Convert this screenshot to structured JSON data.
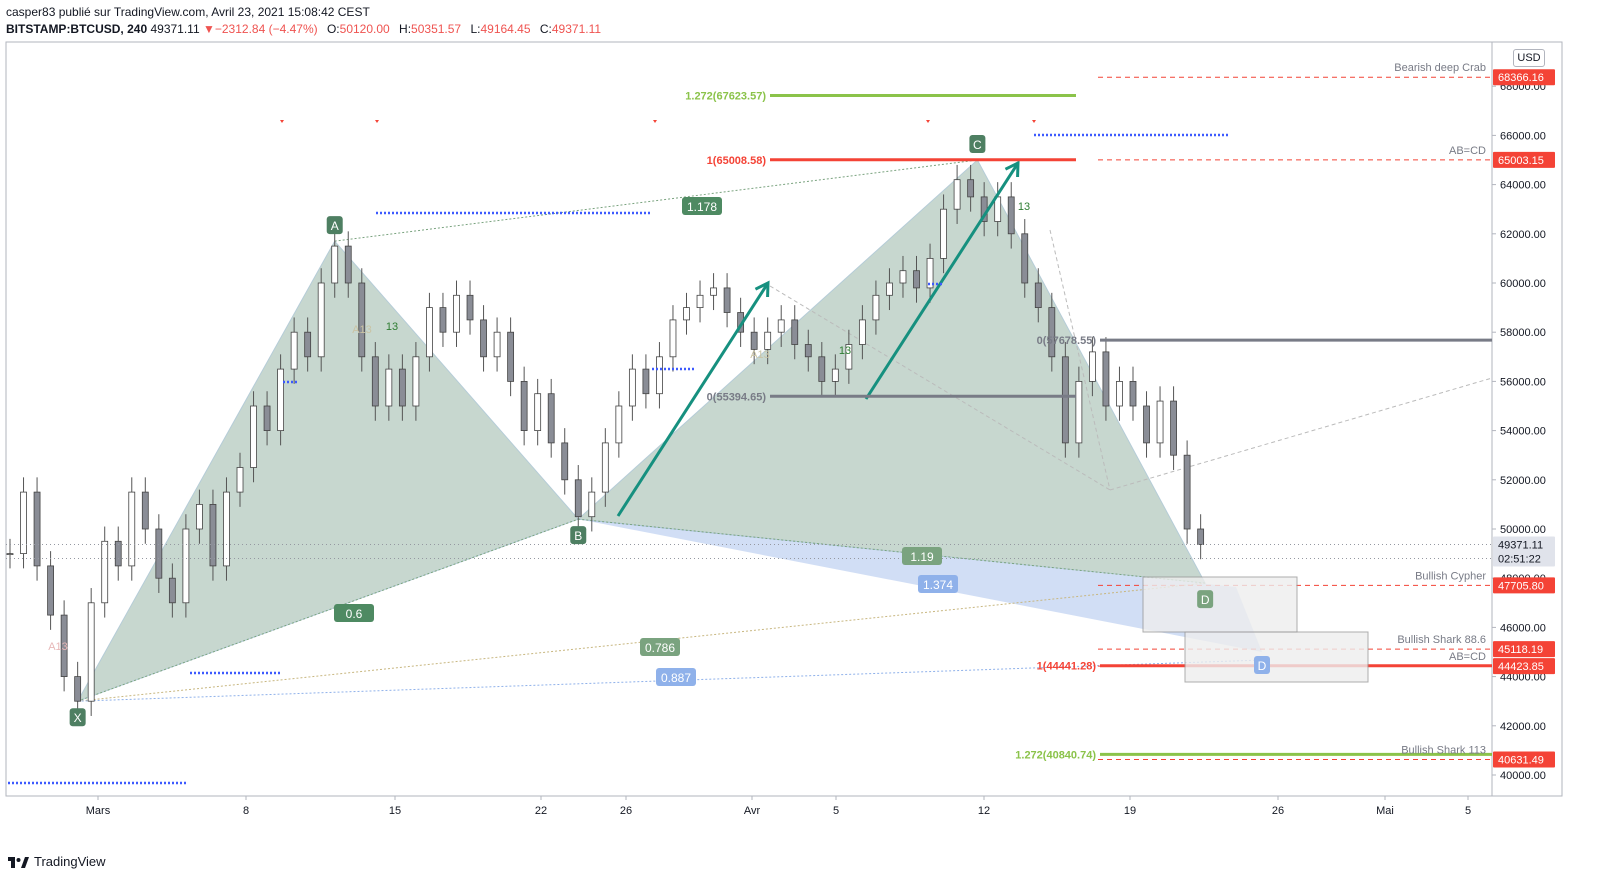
{
  "header": {
    "line1": "casper83 publié sur TradingView.com, Avril 23, 2021 15:08:42 CEST",
    "symbol": "BITSTAMP:BTCUSD, 240",
    "last": "49371.11",
    "change": "−2312.84 (−4.47%)",
    "o_label": "O:",
    "o_val": "50120.00",
    "h_label": "H:",
    "h_val": "50351.57",
    "l_label": "L:",
    "l_val": "49164.45",
    "c_label": "C:",
    "c_val": "49371.11"
  },
  "currency": "USD",
  "footer": {
    "brand": "TradingView"
  },
  "colors": {
    "green_fill": "#9bb8a8",
    "blue_fill": "#c5d6f2",
    "teal_arrow": "#16907f",
    "red_line": "#f44336",
    "lime_line": "#8bc34a",
    "grey_line": "#787b86",
    "dot_blue": "#3d5afe"
  },
  "chart_data": {
    "type": "candlestick",
    "title": "BITSTAMP:BTCUSD, 240",
    "ylim": [
      39500,
      69500
    ],
    "y_ticks": [
      "40000.00",
      "42000.00",
      "44000.00",
      "46000.00",
      "48000.00",
      "50000.00",
      "52000.00",
      "54000.00",
      "56000.00",
      "58000.00",
      "60000.00",
      "62000.00",
      "64000.00",
      "66000.00",
      "68000.00"
    ],
    "x_ticks": [
      "Mars",
      "8",
      "15",
      "22",
      "26",
      "Avr",
      "5",
      "12",
      "19",
      "26",
      "Mai",
      "5"
    ],
    "price_path": [
      [
        0,
        49000
      ],
      [
        0.6,
        51500
      ],
      [
        1.2,
        48500
      ],
      [
        1.8,
        46500
      ],
      [
        2.4,
        44000
      ],
      [
        3.0,
        43000
      ],
      [
        3.6,
        47000
      ],
      [
        4.2,
        49500
      ],
      [
        4.8,
        48500
      ],
      [
        5.4,
        51500
      ],
      [
        6.0,
        50000
      ],
      [
        6.6,
        48000
      ],
      [
        7.2,
        47000
      ],
      [
        7.8,
        50000
      ],
      [
        8.4,
        51000
      ],
      [
        9.0,
        48500
      ],
      [
        9.6,
        51500
      ],
      [
        10.2,
        52500
      ],
      [
        10.8,
        55000
      ],
      [
        11.4,
        54000
      ],
      [
        12.0,
        56500
      ],
      [
        12.6,
        58000
      ],
      [
        13.2,
        57000
      ],
      [
        13.8,
        60000
      ],
      [
        14.4,
        61500
      ],
      [
        15.0,
        60000
      ],
      [
        15.6,
        57000
      ],
      [
        16.2,
        55000
      ],
      [
        16.8,
        56500
      ],
      [
        17.4,
        55000
      ],
      [
        18.0,
        57000
      ],
      [
        18.6,
        59000
      ],
      [
        19.2,
        58000
      ],
      [
        19.8,
        59500
      ],
      [
        20.4,
        58500
      ],
      [
        21.0,
        57000
      ],
      [
        21.6,
        58000
      ],
      [
        22.2,
        56000
      ],
      [
        22.8,
        54000
      ],
      [
        23.4,
        55500
      ],
      [
        24.0,
        53500
      ],
      [
        24.6,
        52000
      ],
      [
        25.2,
        50500
      ],
      [
        25.8,
        51500
      ],
      [
        26.4,
        53500
      ],
      [
        27.0,
        55000
      ],
      [
        27.6,
        56500
      ],
      [
        28.2,
        55500
      ],
      [
        28.8,
        57000
      ],
      [
        29.4,
        58500
      ],
      [
        30.0,
        59000
      ],
      [
        30.6,
        59500
      ],
      [
        31.2,
        59800
      ],
      [
        31.8,
        58800
      ],
      [
        32.4,
        58000
      ],
      [
        33.0,
        57300
      ],
      [
        33.6,
        58000
      ],
      [
        34.2,
        58500
      ],
      [
        34.8,
        57500
      ],
      [
        35.4,
        57000
      ],
      [
        36.0,
        56000
      ],
      [
        36.6,
        56500
      ],
      [
        37.2,
        57500
      ],
      [
        37.8,
        58500
      ],
      [
        38.4,
        59500
      ],
      [
        39.0,
        60000
      ],
      [
        39.6,
        60500
      ],
      [
        40.2,
        59800
      ],
      [
        40.8,
        61000
      ],
      [
        41.4,
        63000
      ],
      [
        42.0,
        64200
      ],
      [
        42.6,
        63500
      ],
      [
        43.2,
        62500
      ],
      [
        43.8,
        63500
      ],
      [
        44.4,
        62000
      ],
      [
        45.0,
        60000
      ],
      [
        45.6,
        59000
      ],
      [
        46.2,
        57000
      ],
      [
        46.8,
        53500
      ],
      [
        47.4,
        56000
      ],
      [
        48.0,
        57200
      ],
      [
        48.6,
        55000
      ],
      [
        49.2,
        56000
      ],
      [
        49.8,
        55000
      ],
      [
        50.4,
        53500
      ],
      [
        51.0,
        55200
      ],
      [
        51.6,
        53000
      ],
      [
        52.2,
        50000
      ],
      [
        52.8,
        49371
      ]
    ],
    "harmonic_points": [
      {
        "label": "X",
        "date_idx": 3.0,
        "price": 43000
      },
      {
        "label": "A",
        "date_idx": 14.4,
        "price": 61700
      },
      {
        "label": "B",
        "date_idx": 25.2,
        "price": 50400
      },
      {
        "label": "C",
        "date_idx": 42.9,
        "price": 65000
      },
      {
        "label": "D",
        "date_idx": 53.0,
        "price": 47800
      }
    ],
    "ratios": [
      {
        "text": "1.178",
        "color": "#4e8a62"
      },
      {
        "text": "0.6",
        "color": "#4e8a62"
      },
      {
        "text": "0.786",
        "color": "#7aa37f"
      },
      {
        "text": "0.887",
        "color": "#8fb1ea"
      },
      {
        "text": "1.19",
        "color": "#7aa37f"
      },
      {
        "text": "1.374",
        "color": "#8fb1ea"
      }
    ],
    "level_lines": [
      {
        "text": "1.272(67623.57)",
        "price": 67623.57,
        "color": "#8bc34a"
      },
      {
        "text": "1(65008.58)",
        "price": 65008.58,
        "color": "#f44336"
      },
      {
        "text": "0(55394.65)",
        "price": 55394.65,
        "color": "#787b86"
      },
      {
        "text": "0(57678.55)",
        "price": 57678.55,
        "color": "#787b86"
      },
      {
        "text": "1(44441.28)",
        "price": 44441.28,
        "color": "#f44336"
      },
      {
        "text": "1.272(40840.74)",
        "price": 40840.74,
        "color": "#8bc34a"
      }
    ],
    "price_labels": [
      {
        "text": "68366.16",
        "price": 68366.16,
        "color": "#f44336",
        "note": "Bearish deep Crab"
      },
      {
        "text": "65003.15",
        "price": 65003.15,
        "color": "#f44336",
        "note": "AB=CD"
      },
      {
        "text": "49371.11",
        "price": 49371.11,
        "color": "#e0e3eb",
        "note": ""
      },
      {
        "text": "02:51:22",
        "price": 48800,
        "color": "#e0e3eb",
        "note": ""
      },
      {
        "text": "47705.80",
        "price": 47705.8,
        "color": "#f44336",
        "note": "Bullish Cypher"
      },
      {
        "text": "45118.19",
        "price": 45118.19,
        "color": "#f44336",
        "note": "Bullish Shark 88.6"
      },
      {
        "text": "44423.85",
        "price": 44423.85,
        "color": "#f44336",
        "note": "AB=CD"
      },
      {
        "text": "40631.49",
        "price": 40631.49,
        "color": "#f44336",
        "note": "Bullish Shark 113"
      }
    ],
    "small_labels": [
      "A13",
      "A13",
      "A13",
      "13",
      "13",
      "13"
    ]
  }
}
